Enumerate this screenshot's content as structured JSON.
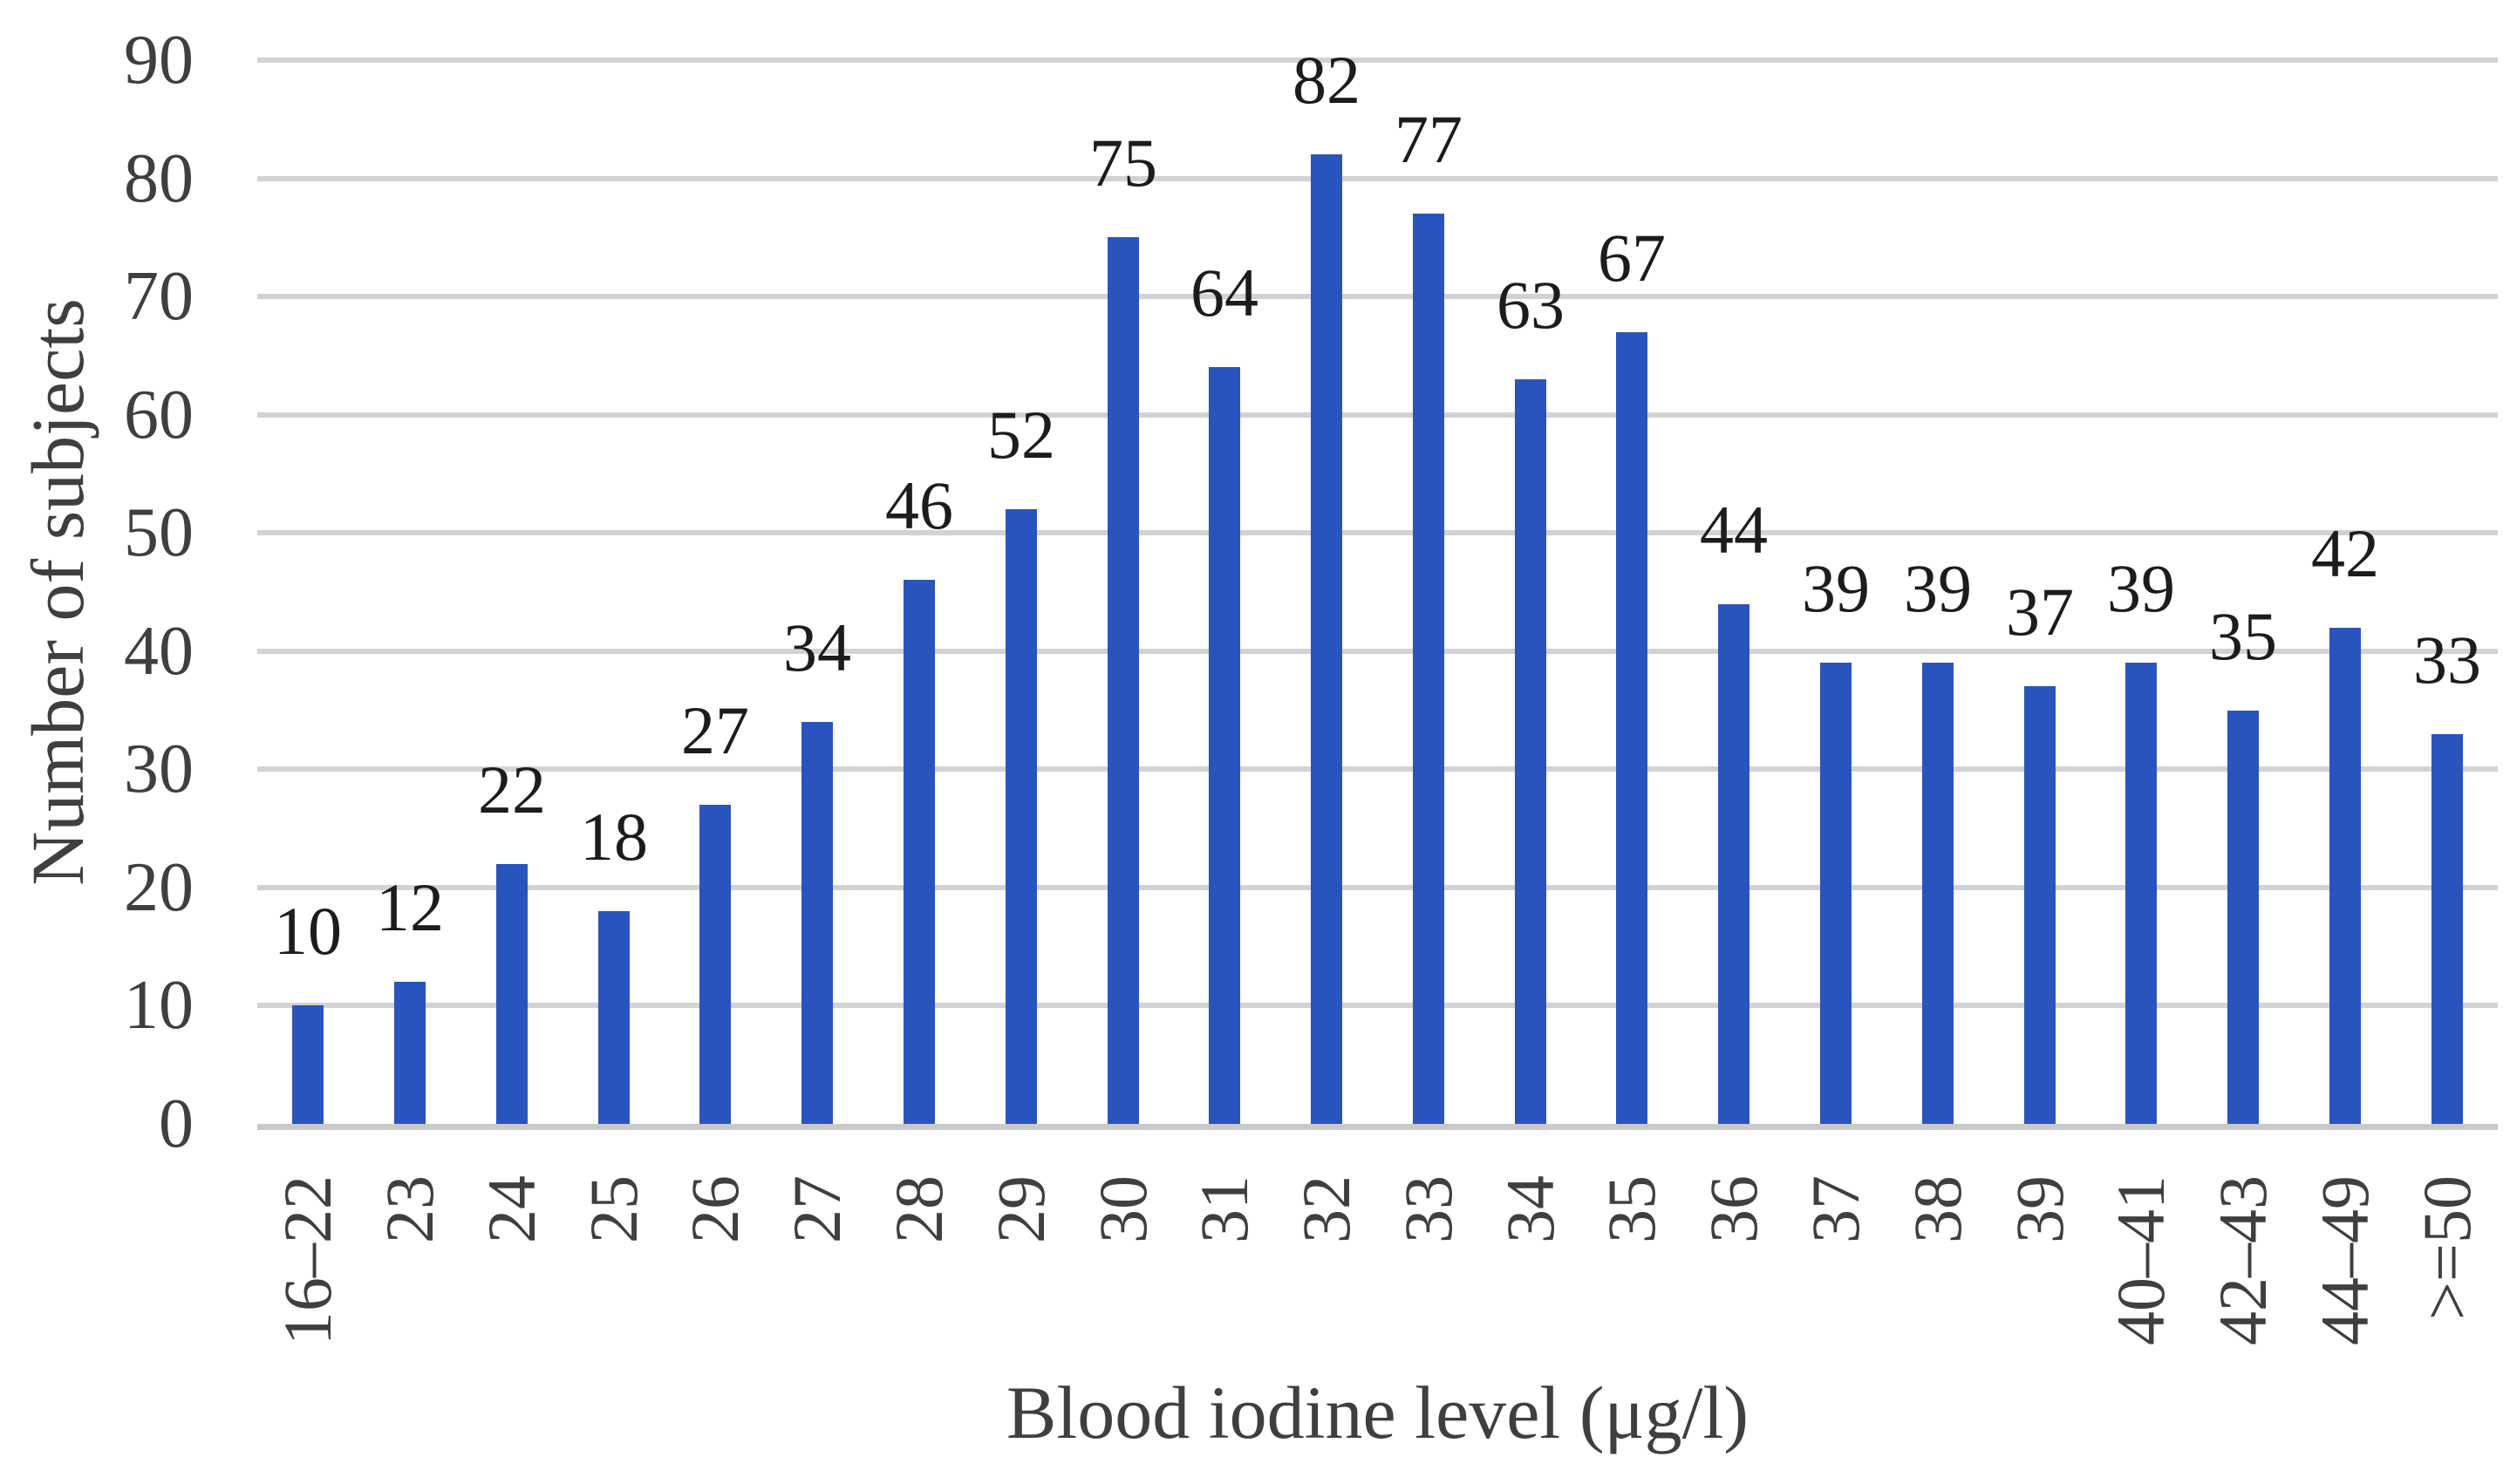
{
  "chart_data": {
    "type": "bar",
    "title": "",
    "xlabel": "Blood iodine level (μg/l)",
    "ylabel": "Number of subjects",
    "categories": [
      "16–22",
      "23",
      "24",
      "25",
      "26",
      "27",
      "28",
      "29",
      "30",
      "31",
      "32",
      "33",
      "34",
      "35",
      "36",
      "37",
      "38",
      "39",
      "40–41",
      "42–43",
      "44–49",
      ">=50"
    ],
    "values": [
      10,
      12,
      22,
      18,
      27,
      34,
      46,
      52,
      75,
      64,
      82,
      77,
      63,
      67,
      44,
      39,
      39,
      37,
      39,
      35,
      42,
      33
    ],
    "yticks": [
      0,
      10,
      20,
      30,
      40,
      50,
      60,
      70,
      80,
      90
    ],
    "ylim": [
      0,
      90
    ],
    "grid": "horizontal",
    "legend": "none",
    "data_labels": true,
    "colors": {
      "bar": "#2a54bd",
      "gridline": "#d2d2d2",
      "axisline": "#c9c9c9",
      "tick_text": "#3f3f3f",
      "data_label_text": "#1c1c1c",
      "title_text": "#3f3f3f",
      "background": "#ffffff"
    }
  }
}
